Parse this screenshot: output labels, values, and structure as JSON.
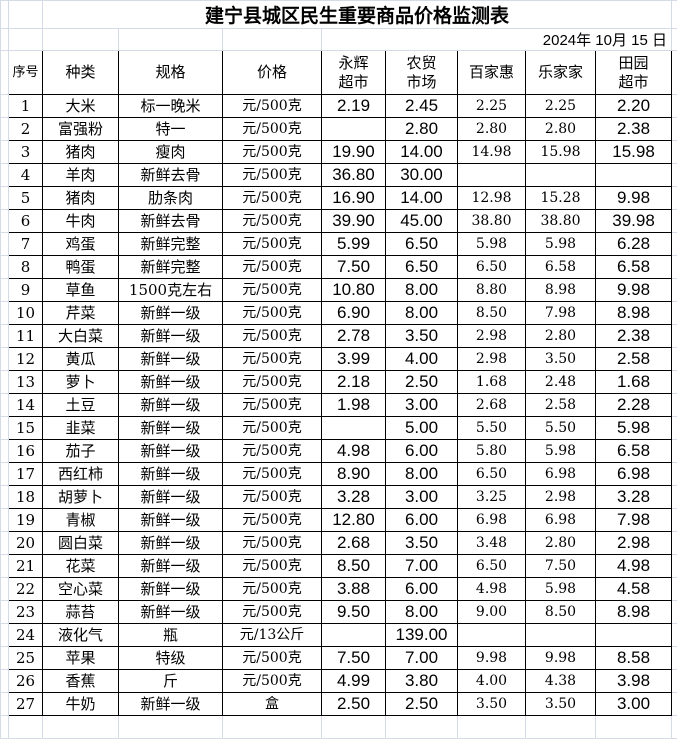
{
  "title": "建宁县城区民生重要商品价格监测表",
  "date": "2024年 10月 15 日",
  "headers": {
    "index": "序号",
    "category": "种类",
    "spec": "规格",
    "unit": "价格",
    "yonghui": [
      "永辉",
      "超市"
    ],
    "nongmao": [
      "农贸",
      "市场"
    ],
    "baijiahui": "百家惠",
    "lejiajia": "乐家家",
    "tianyuan": [
      "田园",
      "超市"
    ]
  },
  "rows": [
    [
      "1",
      "大米",
      "标一晚米",
      "元/500克",
      "2.19",
      "2.45",
      "2.25",
      "2.25",
      "2.20"
    ],
    [
      "2",
      "富强粉",
      "特一",
      "元/500克",
      "",
      "2.80",
      "2.80",
      "2.80",
      "2.38"
    ],
    [
      "3",
      "猪肉",
      "瘦肉",
      "元/500克",
      "19.90",
      "14.00",
      "14.98",
      "15.98",
      "15.98"
    ],
    [
      "4",
      "羊肉",
      "新鲜去骨",
      "元/500克",
      "36.80",
      "30.00",
      "",
      "",
      ""
    ],
    [
      "5",
      "猪肉",
      "肋条肉",
      "元/500克",
      "16.90",
      "14.00",
      "12.98",
      "15.28",
      "9.98"
    ],
    [
      "6",
      "牛肉",
      "新鲜去骨",
      "元/500克",
      "39.90",
      "45.00",
      "38.80",
      "38.80",
      "39.98"
    ],
    [
      "7",
      "鸡蛋",
      "新鲜完整",
      "元/500克",
      "5.99",
      "6.50",
      "5.98",
      "5.98",
      "6.28"
    ],
    [
      "8",
      "鸭蛋",
      "新鲜完整",
      "元/500克",
      "7.50",
      "6.50",
      "6.50",
      "6.58",
      "6.58"
    ],
    [
      "9",
      "草鱼",
      "1500克左右",
      "元/500克",
      "10.80",
      "8.00",
      "8.80",
      "8.98",
      "9.98"
    ],
    [
      "10",
      "芹菜",
      "新鲜一级",
      "元/500克",
      "6.90",
      "8.00",
      "8.50",
      "7.98",
      "8.98"
    ],
    [
      "11",
      "大白菜",
      "新鲜一级",
      "元/500克",
      "2.78",
      "3.50",
      "2.98",
      "2.80",
      "2.38"
    ],
    [
      "12",
      "黄瓜",
      "新鲜一级",
      "元/500克",
      "3.99",
      "4.00",
      "2.98",
      "3.50",
      "2.58"
    ],
    [
      "13",
      "萝卜",
      "新鲜一级",
      "元/500克",
      "2.18",
      "2.50",
      "1.68",
      "2.48",
      "1.68"
    ],
    [
      "14",
      "土豆",
      "新鲜一级",
      "元/500克",
      "1.98",
      "3.00",
      "2.68",
      "2.58",
      "2.28"
    ],
    [
      "15",
      "韭菜",
      "新鲜一级",
      "元/500克",
      "",
      "5.00",
      "5.50",
      "5.50",
      "5.98"
    ],
    [
      "16",
      "茄子",
      "新鲜一级",
      "元/500克",
      "4.98",
      "6.00",
      "5.80",
      "5.98",
      "6.58"
    ],
    [
      "17",
      "西红柿",
      "新鲜一级",
      "元/500克",
      "8.90",
      "8.00",
      "6.50",
      "6.98",
      "6.98"
    ],
    [
      "18",
      "胡萝卜",
      "新鲜一级",
      "元/500克",
      "3.28",
      "3.00",
      "3.25",
      "2.98",
      "3.28"
    ],
    [
      "19",
      "青椒",
      "新鲜一级",
      "元/500克",
      "12.80",
      "6.00",
      "6.98",
      "6.98",
      "7.98"
    ],
    [
      "20",
      "圆白菜",
      "新鲜一级",
      "元/500克",
      "2.68",
      "3.50",
      "3.48",
      "2.80",
      "2.98"
    ],
    [
      "21",
      "花菜",
      "新鲜一级",
      "元/500克",
      "8.50",
      "7.00",
      "6.50",
      "7.50",
      "4.98"
    ],
    [
      "22",
      "空心菜",
      "新鲜一级",
      "元/500克",
      "3.88",
      "6.00",
      "4.98",
      "5.98",
      "4.58"
    ],
    [
      "23",
      "蒜苔",
      "新鲜一级",
      "元/500克",
      "9.50",
      "8.00",
      "9.00",
      "8.50",
      "8.98"
    ],
    [
      "24",
      "液化气",
      "瓶",
      "元/13公斤",
      "",
      "139.00",
      "",
      "",
      ""
    ],
    [
      "25",
      "苹果",
      "特级",
      "元/500克",
      "7.50",
      "7.00",
      "9.98",
      "9.98",
      "8.58"
    ],
    [
      "26",
      "香蕉",
      "斤",
      "元/500克",
      "4.99",
      "3.80",
      "4.00",
      "4.38",
      "3.98"
    ],
    [
      "27",
      "牛奶",
      "新鲜一级",
      "盒",
      "2.50",
      "2.50",
      "3.50",
      "3.50",
      "3.00"
    ]
  ]
}
